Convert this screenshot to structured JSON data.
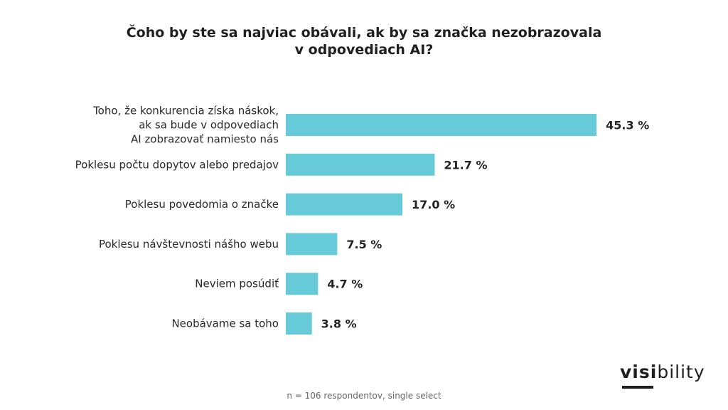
{
  "chart_data": {
    "type": "bar",
    "orientation": "horizontal",
    "title_lines": [
      "Čoho by ste sa najviac obávali, ak by sa značka nezobrazovala",
      "v odpovediach AI?"
    ],
    "categories": [
      [
        "Toho, že konkurencia získa náskok,",
        "ak sa bude v odpovediach",
        "AI zobrazovať namiesto nás"
      ],
      [
        "Poklesu počtu dopytov alebo predajov"
      ],
      [
        "Poklesu povedomia o značke"
      ],
      [
        "Poklesu návštevnosti nášho webu"
      ],
      [
        "Neviem posúdiť"
      ],
      [
        "Neobávame sa toho"
      ]
    ],
    "values": [
      45.3,
      21.7,
      17.0,
      7.5,
      4.7,
      3.8
    ],
    "value_labels": [
      "45.3 %",
      "21.7 %",
      "17.0 %",
      "7.5 %",
      "4.7 %",
      "3.8 %"
    ],
    "bar_color": "#67cad9",
    "grid": false,
    "legend": "none"
  },
  "logo": {
    "bold_part": "visi",
    "regular_part": "bility"
  },
  "footnote": "n = 106 respondentov, single select"
}
